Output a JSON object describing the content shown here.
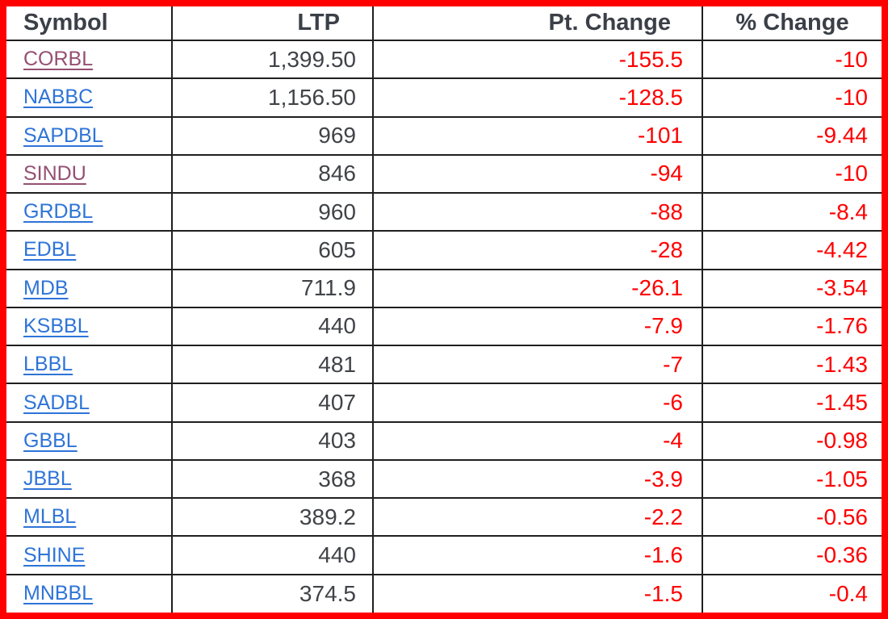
{
  "colors": {
    "outer_border": "#ff0000",
    "grid_line": "#1f1f1f",
    "header_text": "#3b3f47",
    "value_text": "#404347",
    "negative_value": "#ff0000",
    "link": "#2e74d8",
    "visited_link": "#954f72"
  },
  "table": {
    "columns": [
      {
        "label": "Symbol"
      },
      {
        "label": "LTP"
      },
      {
        "label": "Pt. Change"
      },
      {
        "label": "% Change"
      }
    ],
    "rows": [
      {
        "symbol": "CORBL",
        "visited": true,
        "ltp": "1,399.50",
        "pt_change": "-155.5",
        "pct_change": "-10"
      },
      {
        "symbol": "NABBC",
        "visited": false,
        "ltp": "1,156.50",
        "pt_change": "-128.5",
        "pct_change": "-10"
      },
      {
        "symbol": "SAPDBL",
        "visited": false,
        "ltp": "969",
        "pt_change": "-101",
        "pct_change": "-9.44"
      },
      {
        "symbol": "SINDU",
        "visited": true,
        "ltp": "846",
        "pt_change": "-94",
        "pct_change": "-10"
      },
      {
        "symbol": "GRDBL",
        "visited": false,
        "ltp": "960",
        "pt_change": "-88",
        "pct_change": "-8.4"
      },
      {
        "symbol": "EDBL",
        "visited": false,
        "ltp": "605",
        "pt_change": "-28",
        "pct_change": "-4.42"
      },
      {
        "symbol": "MDB",
        "visited": false,
        "ltp": "711.9",
        "pt_change": "-26.1",
        "pct_change": "-3.54"
      },
      {
        "symbol": "KSBBL",
        "visited": false,
        "ltp": "440",
        "pt_change": "-7.9",
        "pct_change": "-1.76"
      },
      {
        "symbol": "LBBL",
        "visited": false,
        "ltp": "481",
        "pt_change": "-7",
        "pct_change": "-1.43"
      },
      {
        "symbol": "SADBL",
        "visited": false,
        "ltp": "407",
        "pt_change": "-6",
        "pct_change": "-1.45"
      },
      {
        "symbol": "GBBL",
        "visited": false,
        "ltp": "403",
        "pt_change": "-4",
        "pct_change": "-0.98"
      },
      {
        "symbol": "JBBL",
        "visited": false,
        "ltp": "368",
        "pt_change": "-3.9",
        "pct_change": "-1.05"
      },
      {
        "symbol": "MLBL",
        "visited": false,
        "ltp": "389.2",
        "pt_change": "-2.2",
        "pct_change": "-0.56"
      },
      {
        "symbol": "SHINE",
        "visited": false,
        "ltp": "440",
        "pt_change": "-1.6",
        "pct_change": "-0.36"
      },
      {
        "symbol": "MNBBL",
        "visited": false,
        "ltp": "374.5",
        "pt_change": "-1.5",
        "pct_change": "-0.4"
      }
    ]
  }
}
